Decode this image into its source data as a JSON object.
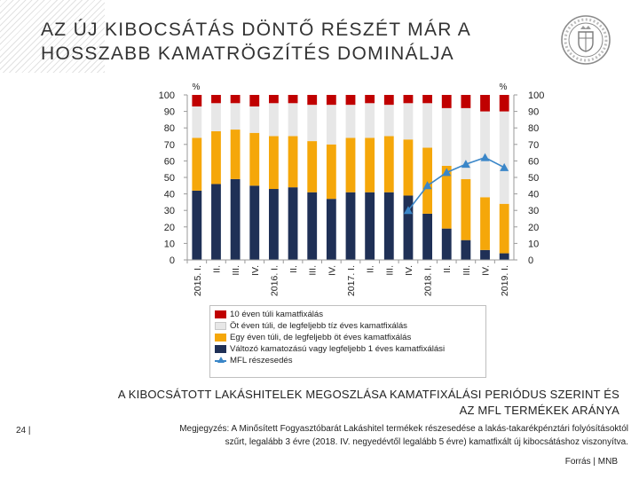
{
  "slide": {
    "title_line1": "AZ ÚJ KIBOCSÁTÁS DÖNTŐ RÉSZÉT MÁR A",
    "title_line2": "HOSSZABB KAMATRÖGZÍTÉS DOMINÁLJA",
    "chart_title_line1": "A KIBOCSÁTOTT LAKÁSHITELEK MEGOSZLÁSA KAMATFIXÁLÁSI PERIÓDUS SZERINT ÉS",
    "chart_title_line2": "AZ MFL TERMÉKEK ARÁNYA",
    "note_line1": "Megjegyzés: A Minősített Fogyasztóbarát Lakáshitel termékek részesedése a lakás-takarékpénztári folyósításoktól",
    "note_line2": "szűrt, legalább 3 évre (2018. IV. negyedévtől legalább 5 évre) kamatfixált új kibocsátáshoz viszonyítva.",
    "source": "Forrás | MNB",
    "page_number": "24 |"
  },
  "logo": {
    "name": "mnb-seal-icon"
  },
  "colors": {
    "red": "#c00000",
    "light_gray": "#e7e7e7",
    "orange": "#f5a70a",
    "navy": "#1f3056",
    "line": "#3a86c8"
  },
  "chart_data": {
    "type": "bar",
    "stacked": true,
    "categories": [
      "2015. I.",
      "II.",
      "III.",
      "IV.",
      "2016. I.",
      "II.",
      "III.",
      "IV.",
      "2017. I.",
      "II.",
      "III.",
      "IV.",
      "2018. I.",
      "II.",
      "III.",
      "IV.",
      "2019. I."
    ],
    "series": [
      {
        "name": "Változó kamatozású vagy legfeljebb 1 éves kamatfixálási",
        "color": "#1f3056",
        "values": [
          42,
          46,
          49,
          45,
          43,
          44,
          41,
          37,
          41,
          41,
          41,
          39,
          28,
          19,
          12,
          6,
          4
        ]
      },
      {
        "name": "Egy éven túli, de legfeljebb öt éves kamatfixálás",
        "color": "#f5a70a",
        "values": [
          32,
          32,
          30,
          32,
          32,
          31,
          31,
          33,
          33,
          33,
          34,
          34,
          40,
          38,
          37,
          32,
          30
        ]
      },
      {
        "name": "Öt éven túli, de legfeljebb tíz éves kamatfixálás",
        "color": "#e7e7e7",
        "values": [
          19,
          17,
          16,
          16,
          20,
          20,
          22,
          24,
          20,
          21,
          19,
          22,
          27,
          35,
          43,
          52,
          56
        ]
      },
      {
        "name": "10 éven túli kamatfixálás",
        "color": "#c00000",
        "values": [
          7,
          5,
          5,
          7,
          5,
          5,
          6,
          6,
          6,
          5,
          6,
          5,
          5,
          8,
          8,
          10,
          10
        ]
      }
    ],
    "line_series": {
      "name": "MFL részesedés",
      "color": "#3a86c8",
      "values": [
        null,
        null,
        null,
        null,
        null,
        null,
        null,
        null,
        null,
        null,
        null,
        30,
        45,
        53,
        58,
        62,
        56
      ]
    },
    "y_left": {
      "label": "%",
      "min": 0,
      "max": 100,
      "ticks": [
        0,
        10,
        20,
        30,
        40,
        50,
        60,
        70,
        80,
        90,
        100
      ]
    },
    "y_right": {
      "label": "%",
      "min": 0,
      "max": 100,
      "ticks": [
        0,
        10,
        20,
        30,
        40,
        50,
        60,
        70,
        80,
        90,
        100
      ]
    },
    "legend": [
      {
        "label": "10 éven túli kamatfixálás",
        "kind": "bar",
        "color": "#c00000"
      },
      {
        "label": "Öt éven túli, de legfeljebb tíz éves kamatfixálás",
        "kind": "bar",
        "color": "#e7e7e7"
      },
      {
        "label": "Egy éven túli, de legfeljebb öt éves kamatfixálás",
        "kind": "bar",
        "color": "#f5a70a"
      },
      {
        "label": "Változó kamatozású vagy legfeljebb 1 éves kamatfixálási",
        "kind": "bar",
        "color": "#1f3056"
      },
      {
        "label": "MFL részesedés",
        "kind": "line",
        "color": "#3a86c8"
      }
    ]
  }
}
